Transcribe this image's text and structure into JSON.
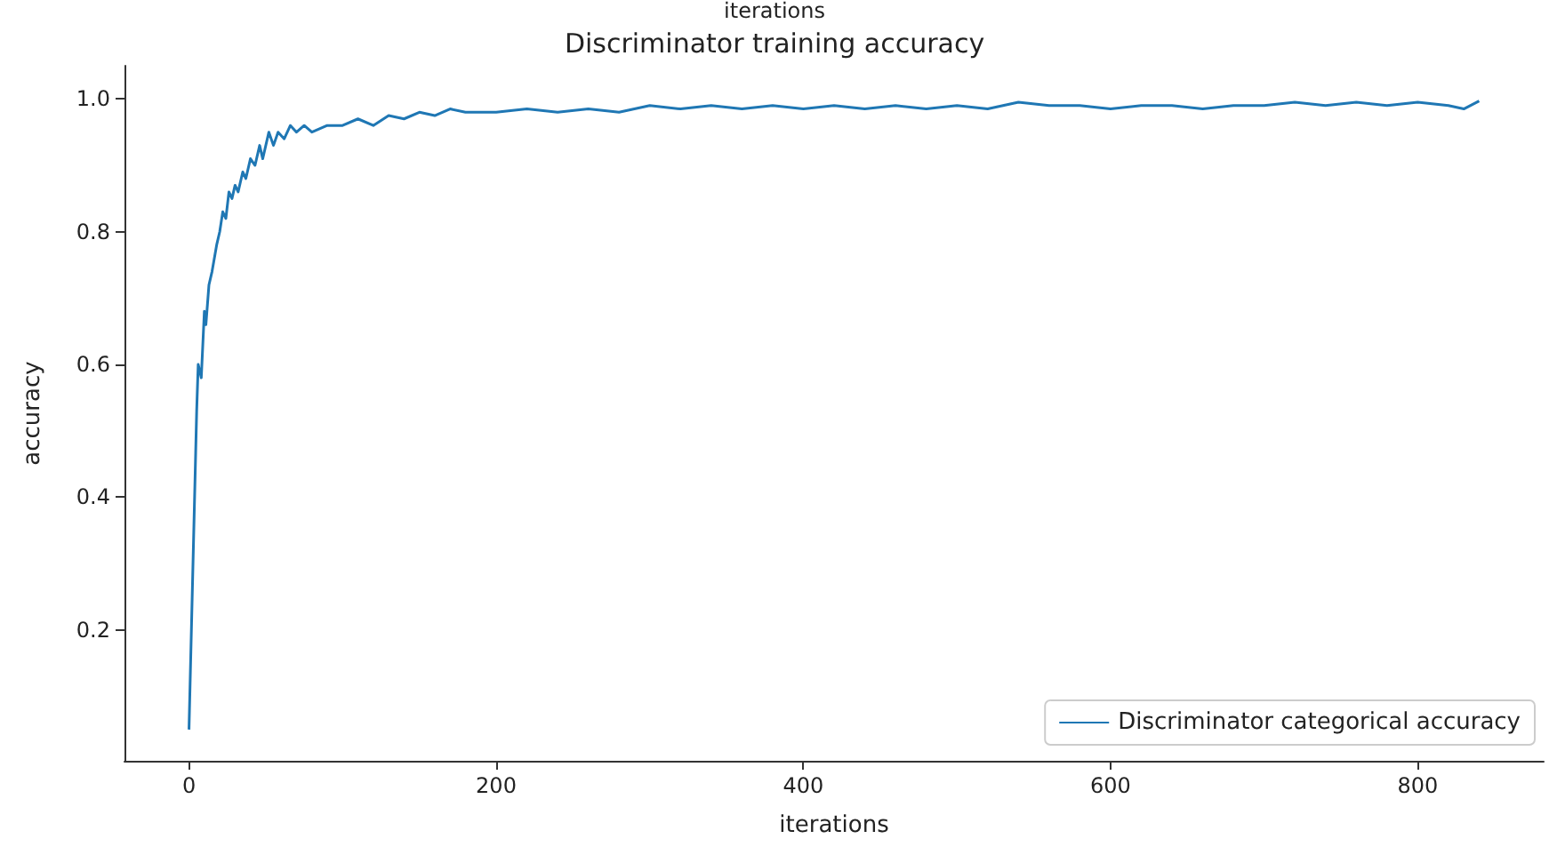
{
  "chart_data": {
    "type": "line",
    "title": "Discriminator training accuracy",
    "xlabel": "iterations",
    "ylabel": "accuracy",
    "annotations": [
      "iterations"
    ],
    "x": [
      0,
      5,
      6,
      8,
      10,
      11,
      13,
      15,
      18,
      20,
      22,
      24,
      26,
      28,
      30,
      32,
      35,
      37,
      40,
      43,
      46,
      48,
      52,
      55,
      58,
      62,
      66,
      70,
      75,
      80,
      90,
      100,
      110,
      120,
      130,
      140,
      150,
      160,
      170,
      180,
      200,
      220,
      240,
      260,
      280,
      300,
      320,
      340,
      360,
      380,
      400,
      420,
      440,
      460,
      480,
      500,
      520,
      540,
      560,
      580,
      600,
      620,
      640,
      660,
      680,
      700,
      720,
      740,
      760,
      780,
      800,
      820,
      830,
      840
    ],
    "series": [
      {
        "name": "Discriminator categorical accuracy",
        "color": "#1f77b4",
        "values": [
          0.05,
          0.53,
          0.6,
          0.58,
          0.68,
          0.66,
          0.72,
          0.74,
          0.78,
          0.8,
          0.83,
          0.82,
          0.86,
          0.85,
          0.87,
          0.86,
          0.89,
          0.88,
          0.91,
          0.9,
          0.93,
          0.91,
          0.95,
          0.93,
          0.95,
          0.94,
          0.96,
          0.95,
          0.96,
          0.95,
          0.96,
          0.96,
          0.97,
          0.96,
          0.975,
          0.97,
          0.98,
          0.975,
          0.985,
          0.98,
          0.98,
          0.985,
          0.98,
          0.985,
          0.98,
          0.99,
          0.985,
          0.99,
          0.985,
          0.99,
          0.985,
          0.99,
          0.985,
          0.99,
          0.985,
          0.99,
          0.985,
          0.995,
          0.99,
          0.99,
          0.985,
          0.99,
          0.99,
          0.985,
          0.99,
          0.99,
          0.995,
          0.99,
          0.995,
          0.99,
          0.995,
          0.99,
          0.985,
          0.997
        ]
      }
    ],
    "xlim": [
      -42,
      882
    ],
    "xticks": [
      0,
      200,
      400,
      600,
      800
    ],
    "ylim": [
      0.003,
      1.05
    ],
    "yticks": [
      {
        "value": 0.2,
        "label": "0.2"
      },
      {
        "value": 0.4,
        "label": "0.4"
      },
      {
        "value": 0.6,
        "label": "0.6"
      },
      {
        "value": 0.8,
        "label": "0.8"
      },
      {
        "value": 1.0,
        "label": "1.0"
      }
    ],
    "legend": "bottom right",
    "grid": false,
    "marker": "none",
    "line_style": "solid"
  }
}
